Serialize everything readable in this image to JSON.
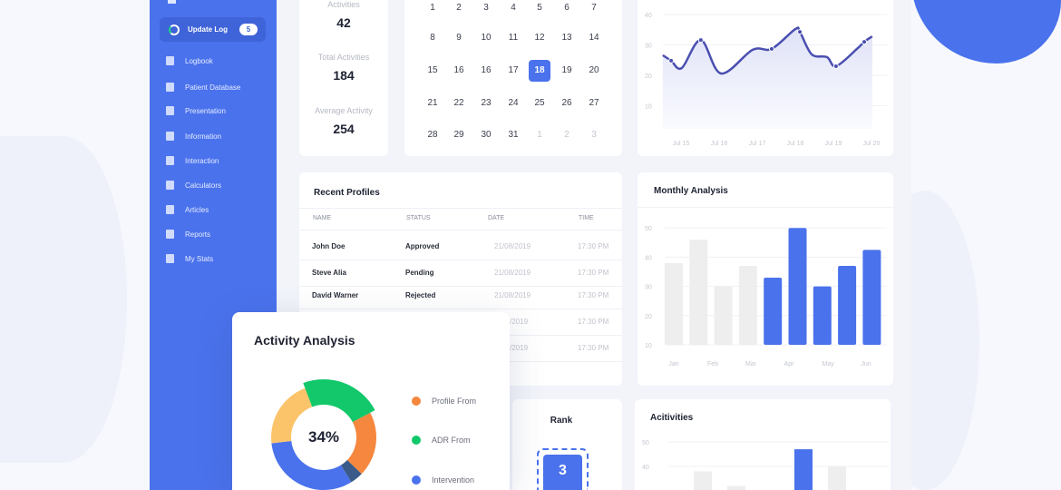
{
  "colors": {
    "accent": "#4a72ec",
    "green": "#12c86a",
    "orange": "#f5873f",
    "yellow": "#fbc46b",
    "navy": "#3a5a8a",
    "grey_bar": "#eeeeef"
  },
  "sidebar": {
    "active": {
      "label": "Update Log",
      "badge": "5",
      "icon": "refresh-icon"
    },
    "items": [
      {
        "label": "Logbook",
        "icon": "book-icon"
      },
      {
        "label": "Patient Database",
        "icon": "id-card-icon"
      },
      {
        "label": "Presentation",
        "icon": "presentation-icon"
      },
      {
        "label": "Information",
        "icon": "clipboard-icon"
      },
      {
        "label": "Interaction",
        "icon": "interaction-icon"
      },
      {
        "label": "Calculators",
        "icon": "calculator-icon"
      },
      {
        "label": "Articles",
        "icon": "article-icon"
      },
      {
        "label": "Reports",
        "icon": "report-icon"
      },
      {
        "label": "My Stats",
        "icon": "bar-chart-icon"
      }
    ]
  },
  "stats": [
    {
      "label": "Activities",
      "value": "42"
    },
    {
      "label": "Total Activities",
      "value": "184"
    },
    {
      "label": "Average Activity",
      "value": "254"
    }
  ],
  "calendar": {
    "selected": "18",
    "rows": [
      [
        "1",
        "2",
        "3",
        "4",
        "5",
        "6",
        "7"
      ],
      [
        "8",
        "9",
        "10",
        "11",
        "12",
        "13",
        "14"
      ],
      [
        "15",
        "16",
        "16",
        "17",
        "18",
        "19",
        "20"
      ],
      [
        "21",
        "22",
        "23",
        "24",
        "25",
        "26",
        "27"
      ],
      [
        "28",
        "29",
        "30",
        "31",
        "1",
        "2",
        "3"
      ]
    ]
  },
  "profiles": {
    "title": "Recent Profiles",
    "columns": [
      "NAME",
      "STATUS",
      "DATE",
      "TIME"
    ],
    "rows": [
      {
        "name": "John Doe",
        "status": "Approved",
        "date": "21/08/2019",
        "time": "17:30 PM"
      },
      {
        "name": "Steve Alia",
        "status": "Pending",
        "date": "21/08/2019",
        "time": "17:30 PM"
      },
      {
        "name": "David Warner",
        "status": "Rejected",
        "date": "21/08/2019",
        "time": "17:30 PM"
      },
      {
        "name": "",
        "status": "",
        "date": "/2019",
        "time": "17:30 PM"
      },
      {
        "name": "",
        "status": "",
        "date": "/2019",
        "time": "17:30 PM"
      }
    ]
  },
  "activity_analysis": {
    "title": "Activity Analysis",
    "center": "34%",
    "legend": [
      {
        "label": "Profile From",
        "color": "#f5873f"
      },
      {
        "label": "ADR From",
        "color": "#12c86a"
      },
      {
        "label": "Intervention",
        "color": "#4a72ec"
      }
    ]
  },
  "rank": {
    "title": "Rank",
    "value": "3"
  },
  "chart_data": [
    {
      "type": "area",
      "title": "",
      "x_ticks": [
        "Jul 15",
        "Jul 16",
        "Jul 17",
        "Jul 18",
        "Jul 19",
        "Jul 20"
      ],
      "y_ticks": [
        "10",
        "20",
        "30",
        "40"
      ],
      "ylim": [
        0,
        40
      ],
      "grid": true,
      "series": [
        {
          "x": [
            14.52,
            14.74,
            15.02,
            15.52,
            16.05,
            16.88,
            17.38,
            18.0,
            18.12,
            18.43,
            18.83,
            19.07,
            19.62,
            19.81,
            20.02
          ],
          "values": [
            26.6,
            24.8,
            22.4,
            31.6,
            20.6,
            28.4,
            28.7,
            35.2,
            34.3,
            26.9,
            26,
            23,
            28.7,
            31,
            32.8
          ],
          "color": "#4a4fb0"
        }
      ],
      "markers_at": [
        14.74,
        15.52,
        17.38,
        18.12,
        19.07,
        19.81
      ]
    },
    {
      "type": "bar",
      "title": "Monthly Analysis",
      "x_ticks": [
        "Jan",
        "Feb",
        "Mar",
        "Apr",
        "May",
        "Jun"
      ],
      "y_ticks": [
        "10",
        "20",
        "30",
        "40",
        "50"
      ],
      "ylim": [
        10,
        50
      ],
      "grid": true,
      "values": [
        38,
        46,
        30,
        37,
        33,
        50,
        30,
        37,
        42.5
      ],
      "highlight": [
        false,
        false,
        false,
        false,
        true,
        true,
        true,
        true,
        true
      ]
    },
    {
      "type": "bar",
      "title": "Acitivities",
      "y_ticks": [
        "40",
        "50"
      ],
      "ylim": [
        10,
        50
      ],
      "grid": true,
      "values": [
        38,
        32,
        47,
        40
      ],
      "highlight": [
        false,
        false,
        true,
        false
      ]
    },
    {
      "type": "pie",
      "donut": true,
      "values": [
        20,
        23,
        21,
        32,
        4
      ],
      "colors": [
        "#f5873f",
        "#12c86a",
        "#fbc46b",
        "#4a72ec",
        "#3a5a8a"
      ]
    }
  ]
}
